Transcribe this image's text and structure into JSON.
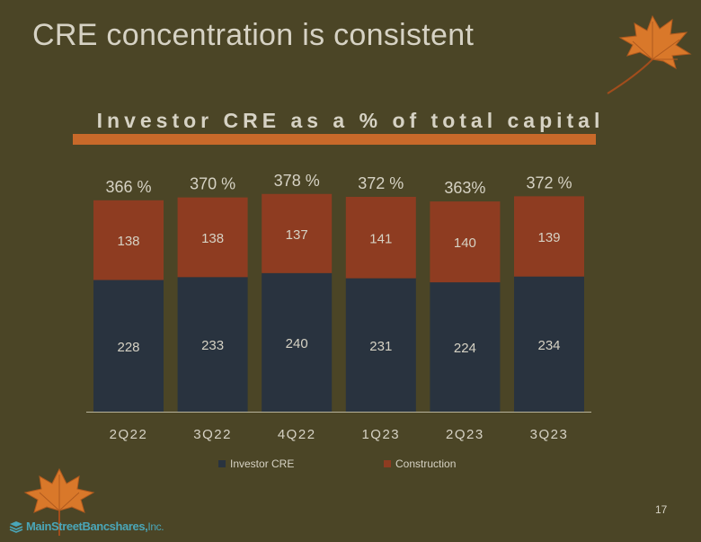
{
  "slide": {
    "title": "CRE concentration is consistent",
    "page_number": "17",
    "logo": {
      "name": "MainStreetBancshares,",
      "suffix": "Inc."
    }
  },
  "chart_data": {
    "type": "bar",
    "stacked": true,
    "title": "Investor CRE as a % of total capital",
    "categories": [
      "2Q22",
      "3Q22",
      "4Q22",
      "1Q23",
      "2Q23",
      "3Q23"
    ],
    "series": [
      {
        "name": "Investor CRE",
        "values": [
          228,
          233,
          240,
          231,
          224,
          234
        ],
        "color": "#29333f"
      },
      {
        "name": "Construction",
        "values": [
          138,
          138,
          137,
          141,
          140,
          139
        ],
        "color": "#8e3c21"
      }
    ],
    "totals": [
      "366 %",
      "370 %",
      "378 %",
      "372 %",
      "363%",
      "372 %"
    ],
    "ylim": [
      0,
      400
    ],
    "grid": false,
    "legend": "bottom"
  },
  "colors": {
    "background": "#4b4526",
    "accent_rule": "#c8692a",
    "text": "#d6d2c4",
    "leaf": "#d9782a"
  }
}
